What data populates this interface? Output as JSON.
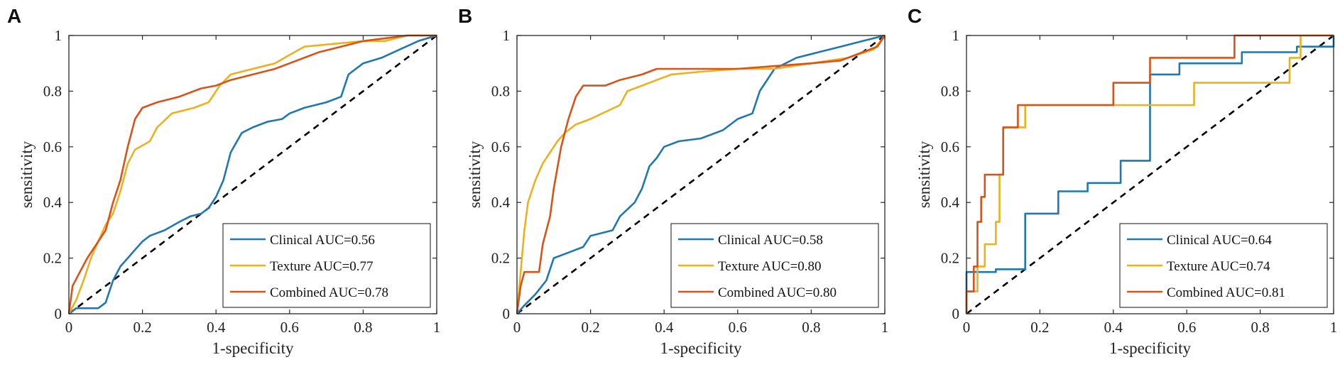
{
  "colors": {
    "clinical": "#1f77b4",
    "texture": "#edb120",
    "combined": "#d95319",
    "chance": "#000000"
  },
  "chart_data": [
    {
      "type": "line",
      "panel": "A",
      "xlabel": "1-specificity",
      "ylabel": "sensitivity",
      "xlim": [
        0,
        1
      ],
      "ylim": [
        0,
        1
      ],
      "xticks": [
        "0",
        "0.2",
        "0.4",
        "0.6",
        "0.8",
        "1"
      ],
      "yticks": [
        "0",
        "0.2",
        "0.4",
        "0.6",
        "0.8",
        "1"
      ],
      "legend_position": "bottom-right",
      "series": [
        {
          "name": "Clinical AUC=0.56",
          "key": "clinical",
          "points": [
            [
              0,
              0
            ],
            [
              0.02,
              0.02
            ],
            [
              0.08,
              0.02
            ],
            [
              0.1,
              0.04
            ],
            [
              0.11,
              0.08
            ],
            [
              0.12,
              0.12
            ],
            [
              0.14,
              0.17
            ],
            [
              0.16,
              0.2
            ],
            [
              0.18,
              0.23
            ],
            [
              0.2,
              0.26
            ],
            [
              0.22,
              0.28
            ],
            [
              0.26,
              0.3
            ],
            [
              0.3,
              0.33
            ],
            [
              0.33,
              0.35
            ],
            [
              0.36,
              0.36
            ],
            [
              0.38,
              0.38
            ],
            [
              0.4,
              0.42
            ],
            [
              0.42,
              0.48
            ],
            [
              0.44,
              0.58
            ],
            [
              0.47,
              0.65
            ],
            [
              0.5,
              0.67
            ],
            [
              0.54,
              0.69
            ],
            [
              0.58,
              0.7
            ],
            [
              0.6,
              0.72
            ],
            [
              0.64,
              0.74
            ],
            [
              0.7,
              0.76
            ],
            [
              0.74,
              0.78
            ],
            [
              0.76,
              0.86
            ],
            [
              0.8,
              0.9
            ],
            [
              0.85,
              0.92
            ],
            [
              0.9,
              0.95
            ],
            [
              0.95,
              0.98
            ],
            [
              1,
              1
            ]
          ]
        },
        {
          "name": "Texture AUC=0.77",
          "key": "texture",
          "points": [
            [
              0,
              0
            ],
            [
              0.02,
              0.05
            ],
            [
              0.04,
              0.12
            ],
            [
              0.06,
              0.2
            ],
            [
              0.08,
              0.26
            ],
            [
              0.1,
              0.32
            ],
            [
              0.12,
              0.36
            ],
            [
              0.14,
              0.44
            ],
            [
              0.16,
              0.54
            ],
            [
              0.18,
              0.59
            ],
            [
              0.22,
              0.62
            ],
            [
              0.24,
              0.67
            ],
            [
              0.28,
              0.72
            ],
            [
              0.34,
              0.74
            ],
            [
              0.38,
              0.76
            ],
            [
              0.41,
              0.82
            ],
            [
              0.44,
              0.86
            ],
            [
              0.5,
              0.88
            ],
            [
              0.56,
              0.9
            ],
            [
              0.6,
              0.93
            ],
            [
              0.64,
              0.96
            ],
            [
              0.72,
              0.97
            ],
            [
              0.8,
              0.98
            ],
            [
              0.86,
              0.98
            ],
            [
              0.92,
              1
            ],
            [
              1,
              1
            ]
          ]
        },
        {
          "name": "Combined AUC=0.78",
          "key": "combined",
          "points": [
            [
              0,
              0
            ],
            [
              0.01,
              0.1
            ],
            [
              0.03,
              0.15
            ],
            [
              0.05,
              0.2
            ],
            [
              0.07,
              0.24
            ],
            [
              0.1,
              0.3
            ],
            [
              0.12,
              0.4
            ],
            [
              0.14,
              0.48
            ],
            [
              0.16,
              0.6
            ],
            [
              0.18,
              0.7
            ],
            [
              0.2,
              0.74
            ],
            [
              0.24,
              0.76
            ],
            [
              0.3,
              0.78
            ],
            [
              0.34,
              0.8
            ],
            [
              0.36,
              0.81
            ],
            [
              0.4,
              0.82
            ],
            [
              0.44,
              0.84
            ],
            [
              0.5,
              0.86
            ],
            [
              0.56,
              0.88
            ],
            [
              0.6,
              0.9
            ],
            [
              0.68,
              0.94
            ],
            [
              0.74,
              0.96
            ],
            [
              0.8,
              0.98
            ],
            [
              0.86,
              0.99
            ],
            [
              0.92,
              1
            ],
            [
              1,
              1
            ]
          ]
        }
      ]
    },
    {
      "type": "line",
      "panel": "B",
      "xlabel": "1-specificity",
      "ylabel": "sensitivity",
      "xlim": [
        0,
        1
      ],
      "ylim": [
        0,
        1
      ],
      "xticks": [
        "0",
        "0.2",
        "0.4",
        "0.6",
        "0.8",
        "1"
      ],
      "yticks": [
        "0",
        "0.2",
        "0.4",
        "0.6",
        "0.8",
        "1"
      ],
      "legend_position": "bottom-right",
      "series": [
        {
          "name": "Clinical AUC=0.58",
          "key": "clinical",
          "points": [
            [
              0,
              0
            ],
            [
              0.02,
              0.03
            ],
            [
              0.05,
              0.07
            ],
            [
              0.08,
              0.12
            ],
            [
              0.1,
              0.2
            ],
            [
              0.14,
              0.22
            ],
            [
              0.18,
              0.24
            ],
            [
              0.2,
              0.28
            ],
            [
              0.26,
              0.3
            ],
            [
              0.28,
              0.35
            ],
            [
              0.32,
              0.4
            ],
            [
              0.34,
              0.45
            ],
            [
              0.36,
              0.53
            ],
            [
              0.38,
              0.56
            ],
            [
              0.4,
              0.6
            ],
            [
              0.44,
              0.62
            ],
            [
              0.5,
              0.63
            ],
            [
              0.56,
              0.66
            ],
            [
              0.6,
              0.7
            ],
            [
              0.64,
              0.72
            ],
            [
              0.66,
              0.8
            ],
            [
              0.7,
              0.88
            ],
            [
              0.76,
              0.92
            ],
            [
              0.82,
              0.94
            ],
            [
              0.88,
              0.96
            ],
            [
              0.94,
              0.98
            ],
            [
              1,
              1
            ]
          ]
        },
        {
          "name": "Texture AUC=0.80",
          "key": "texture",
          "points": [
            [
              0,
              0
            ],
            [
              0.01,
              0.15
            ],
            [
              0.02,
              0.3
            ],
            [
              0.03,
              0.4
            ],
            [
              0.05,
              0.48
            ],
            [
              0.07,
              0.54
            ],
            [
              0.09,
              0.58
            ],
            [
              0.11,
              0.62
            ],
            [
              0.13,
              0.65
            ],
            [
              0.16,
              0.68
            ],
            [
              0.2,
              0.7
            ],
            [
              0.28,
              0.75
            ],
            [
              0.3,
              0.8
            ],
            [
              0.34,
              0.82
            ],
            [
              0.38,
              0.84
            ],
            [
              0.42,
              0.86
            ],
            [
              0.5,
              0.87
            ],
            [
              0.6,
              0.88
            ],
            [
              0.7,
              0.88
            ],
            [
              0.8,
              0.9
            ],
            [
              0.9,
              0.92
            ],
            [
              0.97,
              0.95
            ],
            [
              1,
              1
            ]
          ]
        },
        {
          "name": "Combined AUC=0.80",
          "key": "combined",
          "points": [
            [
              0,
              0
            ],
            [
              0.01,
              0.1
            ],
            [
              0.02,
              0.15
            ],
            [
              0.06,
              0.15
            ],
            [
              0.07,
              0.25
            ],
            [
              0.09,
              0.35
            ],
            [
              0.1,
              0.45
            ],
            [
              0.12,
              0.6
            ],
            [
              0.14,
              0.7
            ],
            [
              0.16,
              0.78
            ],
            [
              0.18,
              0.82
            ],
            [
              0.24,
              0.82
            ],
            [
              0.28,
              0.84
            ],
            [
              0.34,
              0.86
            ],
            [
              0.38,
              0.88
            ],
            [
              0.5,
              0.88
            ],
            [
              0.6,
              0.88
            ],
            [
              0.7,
              0.89
            ],
            [
              0.8,
              0.9
            ],
            [
              0.88,
              0.91
            ],
            [
              0.94,
              0.94
            ],
            [
              0.98,
              0.96
            ],
            [
              1,
              1
            ]
          ]
        }
      ]
    },
    {
      "type": "line",
      "panel": "C",
      "xlabel": "1-specificity",
      "ylabel": "sensitivity",
      "xlim": [
        0,
        1
      ],
      "ylim": [
        0,
        1
      ],
      "xticks": [
        "0",
        "0.2",
        "0.4",
        "0.6",
        "0.8",
        "1"
      ],
      "yticks": [
        "0",
        "0.2",
        "0.4",
        "0.6",
        "0.8",
        "1"
      ],
      "legend_position": "bottom-right",
      "series": [
        {
          "name": "Clinical AUC=0.64",
          "key": "clinical",
          "points": [
            [
              0,
              0
            ],
            [
              0,
              0.15
            ],
            [
              0.08,
              0.15
            ],
            [
              0.08,
              0.16
            ],
            [
              0.16,
              0.16
            ],
            [
              0.16,
              0.36
            ],
            [
              0.25,
              0.36
            ],
            [
              0.25,
              0.44
            ],
            [
              0.33,
              0.44
            ],
            [
              0.33,
              0.47
            ],
            [
              0.42,
              0.47
            ],
            [
              0.42,
              0.55
            ],
            [
              0.5,
              0.55
            ],
            [
              0.5,
              0.86
            ],
            [
              0.58,
              0.86
            ],
            [
              0.58,
              0.9
            ],
            [
              0.75,
              0.9
            ],
            [
              0.75,
              0.94
            ],
            [
              0.9,
              0.94
            ],
            [
              0.9,
              0.96
            ],
            [
              1,
              0.96
            ],
            [
              1,
              1
            ]
          ]
        },
        {
          "name": "Texture AUC=0.74",
          "key": "texture",
          "points": [
            [
              0,
              0
            ],
            [
              0,
              0.08
            ],
            [
              0.03,
              0.08
            ],
            [
              0.03,
              0.17
            ],
            [
              0.05,
              0.17
            ],
            [
              0.05,
              0.25
            ],
            [
              0.08,
              0.25
            ],
            [
              0.08,
              0.33
            ],
            [
              0.09,
              0.33
            ],
            [
              0.09,
              0.5
            ],
            [
              0.1,
              0.5
            ],
            [
              0.1,
              0.67
            ],
            [
              0.16,
              0.67
            ],
            [
              0.16,
              0.75
            ],
            [
              0.62,
              0.75
            ],
            [
              0.62,
              0.83
            ],
            [
              0.88,
              0.83
            ],
            [
              0.88,
              0.92
            ],
            [
              0.91,
              0.92
            ],
            [
              0.91,
              1
            ],
            [
              1,
              1
            ]
          ]
        },
        {
          "name": "Combined AUC=0.81",
          "key": "combined",
          "points": [
            [
              0,
              0
            ],
            [
              0,
              0.08
            ],
            [
              0.02,
              0.08
            ],
            [
              0.02,
              0.17
            ],
            [
              0.03,
              0.17
            ],
            [
              0.03,
              0.33
            ],
            [
              0.04,
              0.33
            ],
            [
              0.04,
              0.42
            ],
            [
              0.05,
              0.42
            ],
            [
              0.05,
              0.5
            ],
            [
              0.1,
              0.5
            ],
            [
              0.1,
              0.67
            ],
            [
              0.14,
              0.67
            ],
            [
              0.14,
              0.75
            ],
            [
              0.4,
              0.75
            ],
            [
              0.4,
              0.83
            ],
            [
              0.5,
              0.83
            ],
            [
              0.5,
              0.92
            ],
            [
              0.73,
              0.92
            ],
            [
              0.73,
              1
            ],
            [
              1,
              1
            ]
          ]
        }
      ]
    }
  ]
}
